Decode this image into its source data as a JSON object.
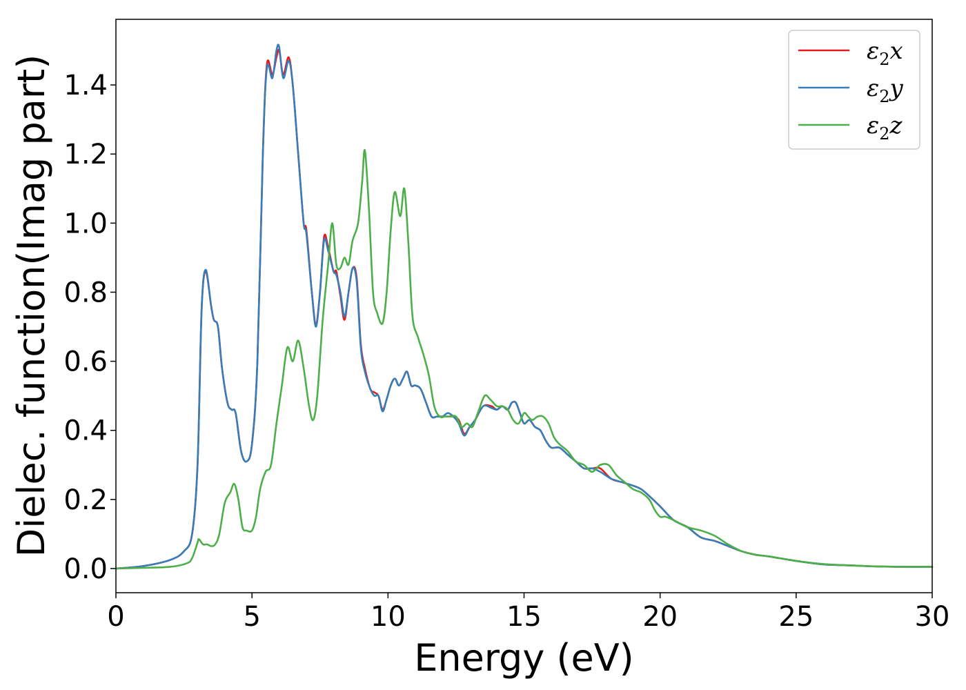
{
  "chart_data": {
    "type": "line",
    "xlabel": "Energy (eV)",
    "ylabel": "Dielec. function(Imag part)",
    "xlim": [
      0,
      30
    ],
    "ylim": [
      -0.07,
      1.59
    ],
    "xticks": [
      0,
      5,
      10,
      15,
      20,
      25,
      30
    ],
    "yticks": [
      0.0,
      0.2,
      0.4,
      0.6,
      0.8,
      1.0,
      1.2,
      1.4
    ],
    "xtick_labels": [
      "0",
      "5",
      "10",
      "15",
      "20",
      "25",
      "30"
    ],
    "ytick_labels": [
      "0.0",
      "0.2",
      "0.4",
      "0.6",
      "0.8",
      "1.0",
      "1.2",
      "1.4"
    ],
    "grid": false,
    "legend_position": "top-right",
    "series": [
      {
        "name": "ε2x",
        "legend_base": "ε",
        "legend_sub": "2",
        "legend_var": "x",
        "color": "#e41a1c",
        "x": [
          0,
          1,
          2,
          2.5,
          2.8,
          3.0,
          3.15,
          3.3,
          3.5,
          3.6,
          3.75,
          3.9,
          4.1,
          4.25,
          4.4,
          4.6,
          4.8,
          5.0,
          5.2,
          5.4,
          5.55,
          5.75,
          5.9,
          6.0,
          6.15,
          6.35,
          6.5,
          6.7,
          6.9,
          7.0,
          7.2,
          7.35,
          7.5,
          7.65,
          7.8,
          8.0,
          8.1,
          8.25,
          8.4,
          8.55,
          8.7,
          8.85,
          9.0,
          9.15,
          9.35,
          9.5,
          9.65,
          9.8,
          9.95,
          10.1,
          10.25,
          10.4,
          10.55,
          10.7,
          10.85,
          11.0,
          11.2,
          11.4,
          11.6,
          11.8,
          12.0,
          12.2,
          12.4,
          12.6,
          12.8,
          13.0,
          13.2,
          13.5,
          13.8,
          14.0,
          14.2,
          14.4,
          14.55,
          14.7,
          14.85,
          15.0,
          15.2,
          15.4,
          15.6,
          15.8,
          16.0,
          16.3,
          16.6,
          16.9,
          17.2,
          17.5,
          17.8,
          18.2,
          18.6,
          19.0,
          19.3,
          19.6,
          20.0,
          20.5,
          21.0,
          21.5,
          22.0,
          22.5,
          23.0,
          23.5,
          24.0,
          25.0,
          26.0,
          27.0,
          28.0,
          29.0,
          30.0
        ],
        "y": [
          0.0,
          0.007,
          0.025,
          0.05,
          0.1,
          0.3,
          0.75,
          0.86,
          0.76,
          0.72,
          0.7,
          0.58,
          0.48,
          0.46,
          0.45,
          0.34,
          0.31,
          0.36,
          0.6,
          1.2,
          1.46,
          1.43,
          1.48,
          1.5,
          1.43,
          1.48,
          1.4,
          1.2,
          1.0,
          0.98,
          0.8,
          0.71,
          0.8,
          0.96,
          0.93,
          0.86,
          0.86,
          0.79,
          0.72,
          0.8,
          0.87,
          0.84,
          0.65,
          0.58,
          0.52,
          0.51,
          0.5,
          0.46,
          0.49,
          0.53,
          0.55,
          0.53,
          0.55,
          0.57,
          0.53,
          0.53,
          0.52,
          0.48,
          0.44,
          0.44,
          0.44,
          0.44,
          0.44,
          0.43,
          0.39,
          0.41,
          0.43,
          0.47,
          0.47,
          0.46,
          0.47,
          0.46,
          0.48,
          0.48,
          0.45,
          0.42,
          0.43,
          0.41,
          0.4,
          0.37,
          0.35,
          0.35,
          0.33,
          0.31,
          0.29,
          0.29,
          0.29,
          0.26,
          0.25,
          0.24,
          0.23,
          0.21,
          0.18,
          0.14,
          0.12,
          0.09,
          0.08,
          0.065,
          0.05,
          0.04,
          0.035,
          0.022,
          0.012,
          0.009,
          0.006,
          0.005,
          0.005
        ]
      },
      {
        "name": "ε2y",
        "legend_base": "ε",
        "legend_sub": "2",
        "legend_var": "y",
        "color": "#377eb8",
        "x": [
          0,
          1,
          2,
          2.5,
          2.8,
          3.0,
          3.15,
          3.3,
          3.5,
          3.6,
          3.75,
          3.9,
          4.1,
          4.25,
          4.4,
          4.6,
          4.8,
          5.0,
          5.2,
          5.4,
          5.55,
          5.75,
          5.9,
          6.0,
          6.15,
          6.35,
          6.5,
          6.7,
          6.9,
          7.0,
          7.2,
          7.35,
          7.5,
          7.65,
          7.8,
          8.0,
          8.1,
          8.25,
          8.4,
          8.55,
          8.7,
          8.85,
          9.0,
          9.15,
          9.35,
          9.5,
          9.65,
          9.8,
          9.95,
          10.1,
          10.25,
          10.4,
          10.55,
          10.7,
          10.85,
          11.0,
          11.2,
          11.4,
          11.6,
          11.8,
          12.0,
          12.2,
          12.4,
          12.6,
          12.8,
          13.0,
          13.2,
          13.5,
          13.8,
          14.0,
          14.2,
          14.4,
          14.55,
          14.7,
          14.85,
          15.0,
          15.2,
          15.4,
          15.6,
          15.8,
          16.0,
          16.3,
          16.6,
          16.9,
          17.2,
          17.5,
          17.8,
          18.2,
          18.6,
          19.0,
          19.3,
          19.6,
          20.0,
          20.5,
          21.0,
          21.5,
          22.0,
          22.5,
          23.0,
          23.5,
          24.0,
          25.0,
          26.0,
          27.0,
          28.0,
          29.0,
          30.0
        ],
        "y": [
          0.0,
          0.007,
          0.025,
          0.05,
          0.1,
          0.3,
          0.75,
          0.865,
          0.76,
          0.72,
          0.7,
          0.58,
          0.48,
          0.46,
          0.45,
          0.34,
          0.31,
          0.36,
          0.6,
          1.2,
          1.45,
          1.42,
          1.5,
          1.51,
          1.42,
          1.47,
          1.4,
          1.2,
          1.0,
          0.97,
          0.8,
          0.7,
          0.8,
          0.95,
          0.92,
          0.86,
          0.85,
          0.8,
          0.73,
          0.8,
          0.87,
          0.83,
          0.64,
          0.57,
          0.52,
          0.5,
          0.5,
          0.455,
          0.49,
          0.53,
          0.55,
          0.53,
          0.55,
          0.57,
          0.53,
          0.53,
          0.52,
          0.48,
          0.44,
          0.44,
          0.44,
          0.45,
          0.44,
          0.42,
          0.385,
          0.41,
          0.43,
          0.47,
          0.465,
          0.46,
          0.47,
          0.46,
          0.48,
          0.48,
          0.45,
          0.42,
          0.43,
          0.41,
          0.4,
          0.37,
          0.35,
          0.35,
          0.33,
          0.31,
          0.29,
          0.29,
          0.28,
          0.26,
          0.25,
          0.24,
          0.23,
          0.21,
          0.18,
          0.14,
          0.12,
          0.09,
          0.08,
          0.065,
          0.05,
          0.04,
          0.035,
          0.022,
          0.012,
          0.009,
          0.006,
          0.005,
          0.005
        ]
      },
      {
        "name": "ε2z",
        "legend_base": "ε",
        "legend_sub": "2",
        "legend_var": "z",
        "color": "#4daf4a",
        "x": [
          0,
          1,
          2,
          2.6,
          2.8,
          3.0,
          3.05,
          3.2,
          3.35,
          3.5,
          3.65,
          3.8,
          4.0,
          4.2,
          4.35,
          4.5,
          4.65,
          4.8,
          5.0,
          5.15,
          5.3,
          5.5,
          5.7,
          5.9,
          6.1,
          6.3,
          6.5,
          6.7,
          6.9,
          7.1,
          7.25,
          7.4,
          7.6,
          7.8,
          7.95,
          8.1,
          8.25,
          8.4,
          8.55,
          8.7,
          8.9,
          9.05,
          9.15,
          9.3,
          9.45,
          9.6,
          9.8,
          9.95,
          10.1,
          10.25,
          10.45,
          10.6,
          10.75,
          10.9,
          11.1,
          11.3,
          11.5,
          11.7,
          11.9,
          12.1,
          12.3,
          12.5,
          12.7,
          12.9,
          13.1,
          13.3,
          13.55,
          13.75,
          14.0,
          14.2,
          14.4,
          14.6,
          14.8,
          15.0,
          15.15,
          15.3,
          15.5,
          15.7,
          15.9,
          16.1,
          16.3,
          16.6,
          16.9,
          17.2,
          17.5,
          17.8,
          18.1,
          18.4,
          18.7,
          19.0,
          19.3,
          19.6,
          19.8,
          20.0,
          20.2,
          20.5,
          21.0,
          21.5,
          22.0,
          22.5,
          23.0,
          23.5,
          24.0,
          25.0,
          26.0,
          27.0,
          28.0,
          29.0,
          30.0
        ],
        "y": [
          0.0,
          0.002,
          0.005,
          0.015,
          0.03,
          0.075,
          0.085,
          0.07,
          0.07,
          0.065,
          0.07,
          0.1,
          0.19,
          0.22,
          0.245,
          0.2,
          0.12,
          0.11,
          0.11,
          0.15,
          0.23,
          0.28,
          0.3,
          0.42,
          0.53,
          0.64,
          0.6,
          0.66,
          0.58,
          0.47,
          0.43,
          0.5,
          0.72,
          0.88,
          1.0,
          0.88,
          0.87,
          0.9,
          0.88,
          0.95,
          1.0,
          1.12,
          1.21,
          1.04,
          0.8,
          0.74,
          0.71,
          0.8,
          0.98,
          1.09,
          1.02,
          1.1,
          0.94,
          0.73,
          0.67,
          0.62,
          0.56,
          0.47,
          0.44,
          0.44,
          0.44,
          0.44,
          0.41,
          0.42,
          0.41,
          0.45,
          0.5,
          0.49,
          0.47,
          0.47,
          0.46,
          0.43,
          0.42,
          0.45,
          0.44,
          0.43,
          0.44,
          0.44,
          0.42,
          0.38,
          0.36,
          0.34,
          0.31,
          0.3,
          0.28,
          0.3,
          0.3,
          0.27,
          0.25,
          0.23,
          0.22,
          0.2,
          0.17,
          0.15,
          0.15,
          0.14,
          0.12,
          0.11,
          0.095,
          0.07,
          0.05,
          0.04,
          0.035,
          0.022,
          0.013,
          0.009,
          0.006,
          0.005,
          0.005
        ]
      }
    ]
  }
}
